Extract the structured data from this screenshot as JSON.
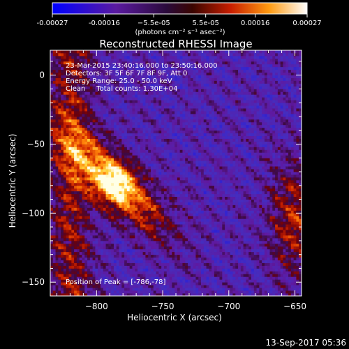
{
  "colorbar": {
    "ticks": [
      "-0.00027",
      "-0.00016",
      "−5.5e-05",
      "5.5e-05",
      "0.00016",
      "0.00027"
    ],
    "tick_values": [
      -0.00027,
      -0.00016,
      -5.5e-05,
      5.5e-05,
      0.00016,
      0.00027
    ],
    "range": [
      -0.00027,
      0.00027
    ],
    "units": "(photons cm⁻² s⁻¹ asec⁻²)"
  },
  "title": "Reconstructed RHESSI Image",
  "annotations": {
    "time": "23-Mar-2015 23:40:16.000 to 23:50:16.000",
    "detectors": "Detectors: 3F 5F 6F 7F 8F 9F, Att 0",
    "energy": "Energy Range: 25.0 - 50.0 keV",
    "clean": "Clean     Total counts: 1.30E+04",
    "peak": "Position of Peak = [-786,-78]"
  },
  "footer_date": "13-Sep-2017 05:36",
  "chart_data": {
    "type": "heatmap",
    "title": "Reconstructed RHESSI Image",
    "xlabel": "Heliocentric X (arcsec)",
    "ylabel": "Heliocentric Y (arcsec)",
    "xlim": [
      -835,
      -645
    ],
    "ylim": [
      -160,
      18
    ],
    "xticks": [
      -800,
      -750,
      -700,
      -650
    ],
    "yticks": [
      -150,
      -100,
      -50,
      0
    ],
    "xtick_labels": [
      "−800",
      "−750",
      "−700",
      "−650"
    ],
    "ytick_labels": [
      "−150",
      "−100",
      "−50",
      "0"
    ],
    "colormap": "blue-purple-red-yellow-white",
    "peak_position": [
      -786,
      -78
    ],
    "sources": [
      {
        "x": -786,
        "y": -78,
        "relative_intensity": 1.0
      },
      {
        "x": -650,
        "y": -105,
        "relative_intensity": 0.75
      }
    ]
  }
}
